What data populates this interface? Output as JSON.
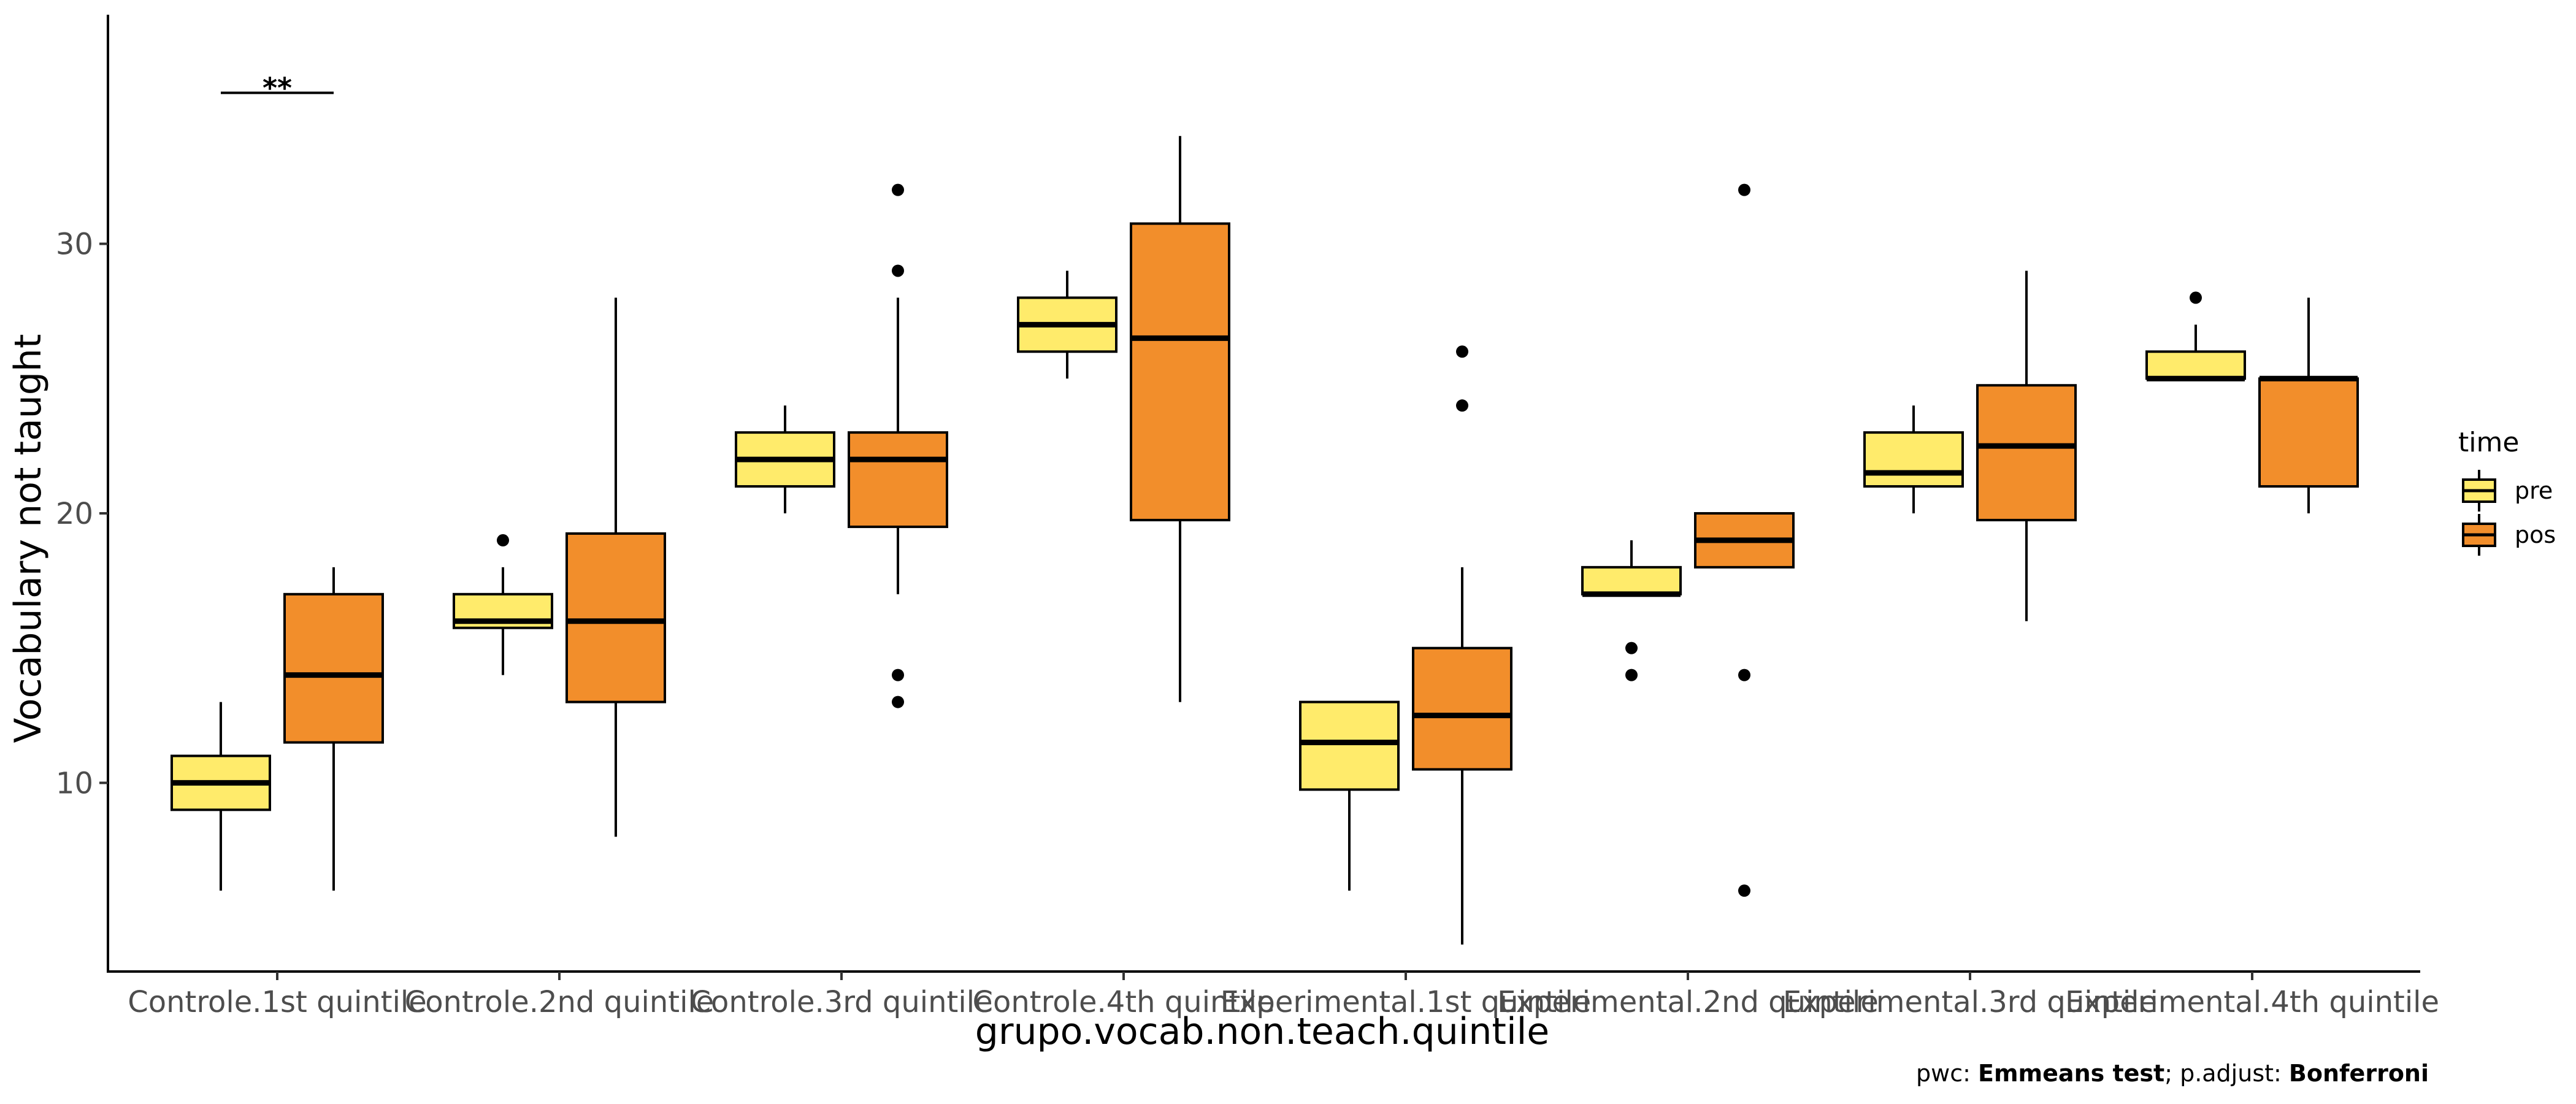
{
  "chart_data": {
    "type": "box",
    "xlabel": "grupo.vocab.non.teach.quintile",
    "ylabel": "Vocabulary not taught",
    "ylim": [
      3,
      38.5
    ],
    "yticks": [
      10,
      20,
      30
    ],
    "categories": [
      "Controle.1st quintile",
      "Controle.2nd quintile",
      "Controle.3rd quintile",
      "Controle.4th quintile",
      "Experimental.1st quintile",
      "Experimental.2nd quintile",
      "Experimental.3rd quintile",
      "Experimental.4th quintile"
    ],
    "legend": {
      "title": "time",
      "position": "right"
    },
    "series": [
      {
        "name": "pre",
        "color": "#FFEB6B",
        "boxes": [
          {
            "lower_whisker": 6,
            "q1": 9,
            "median": 10,
            "q3": 11,
            "upper_whisker": 13,
            "outliers": []
          },
          {
            "lower_whisker": 14,
            "q1": 15.75,
            "median": 16,
            "q3": 17,
            "upper_whisker": 18,
            "outliers": [
              19
            ]
          },
          {
            "lower_whisker": 20,
            "q1": 21,
            "median": 22,
            "q3": 23,
            "upper_whisker": 24,
            "outliers": []
          },
          {
            "lower_whisker": 25,
            "q1": 26,
            "median": 27,
            "q3": 28,
            "upper_whisker": 29,
            "outliers": []
          },
          {
            "lower_whisker": 6,
            "q1": 9.75,
            "median": 11.5,
            "q3": 13,
            "upper_whisker": 13,
            "outliers": []
          },
          {
            "lower_whisker": 17,
            "q1": 17,
            "median": 17,
            "q3": 18,
            "upper_whisker": 19,
            "outliers": [
              14,
              15
            ]
          },
          {
            "lower_whisker": 20,
            "q1": 21,
            "median": 21.5,
            "q3": 23,
            "upper_whisker": 24,
            "outliers": []
          },
          {
            "lower_whisker": 25,
            "q1": 25,
            "median": 25,
            "q3": 26,
            "upper_whisker": 27,
            "outliers": [
              28
            ]
          }
        ]
      },
      {
        "name": "pos",
        "color": "#F28E2B",
        "boxes": [
          {
            "lower_whisker": 6,
            "q1": 11.5,
            "median": 14,
            "q3": 17,
            "upper_whisker": 18,
            "outliers": []
          },
          {
            "lower_whisker": 8,
            "q1": 13,
            "median": 16,
            "q3": 19.25,
            "upper_whisker": 28,
            "outliers": []
          },
          {
            "lower_whisker": 17,
            "q1": 19.5,
            "median": 22,
            "q3": 23,
            "upper_whisker": 28,
            "outliers": [
              13,
              14,
              29,
              32
            ]
          },
          {
            "lower_whisker": 13,
            "q1": 19.75,
            "median": 26.5,
            "q3": 30.75,
            "upper_whisker": 34,
            "outliers": []
          },
          {
            "lower_whisker": 4,
            "q1": 10.5,
            "median": 12.5,
            "q3": 15,
            "upper_whisker": 18,
            "outliers": [
              24,
              26
            ]
          },
          {
            "lower_whisker": 18,
            "q1": 18,
            "median": 19,
            "q3": 20,
            "upper_whisker": 20,
            "outliers": [
              6,
              14,
              32
            ]
          },
          {
            "lower_whisker": 16,
            "q1": 19.75,
            "median": 22.5,
            "q3": 24.75,
            "upper_whisker": 29,
            "outliers": []
          },
          {
            "lower_whisker": 20,
            "q1": 21,
            "median": 25,
            "q3": 25,
            "upper_whisker": 28,
            "outliers": []
          }
        ]
      }
    ],
    "annotations": [
      {
        "category_index": 0,
        "label": "**",
        "y": 35.6
      }
    ]
  },
  "caption": {
    "prefix": "pwc: ",
    "method": "Emmeans test",
    "middle": "; p.adjust: ",
    "adjust": "Bonferroni"
  }
}
